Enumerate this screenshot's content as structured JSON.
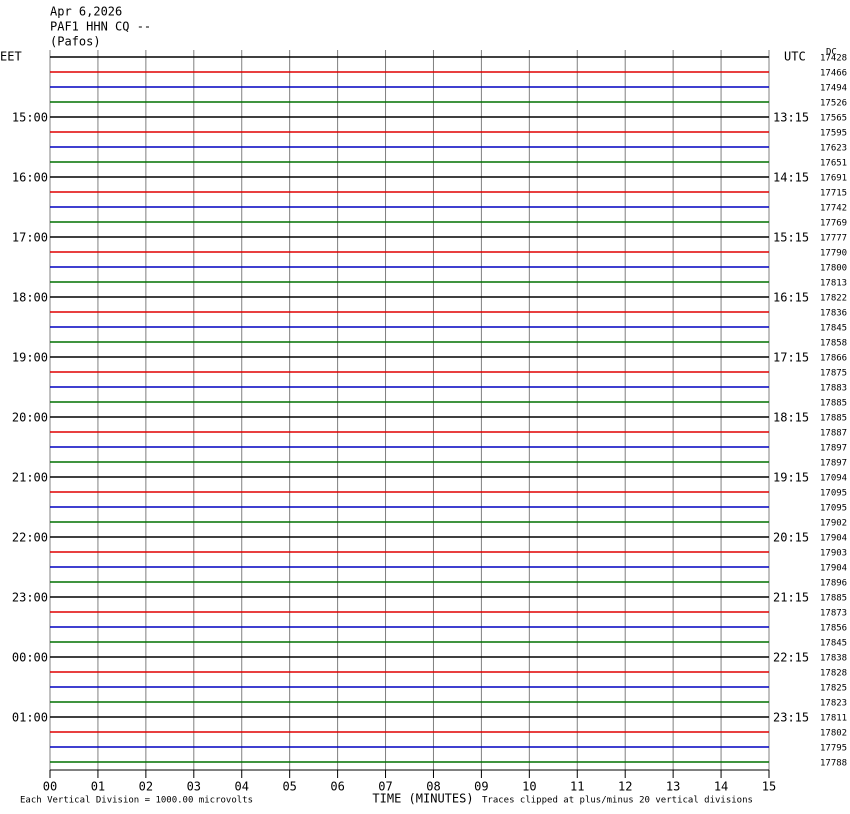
{
  "chart_data": {
    "type": "helicorder",
    "title": [
      "Apr 6,2026",
      "PAF1 HHN CQ --",
      "(Pafos)"
    ],
    "left_axis_label": "EET",
    "right_axis_label": "UTC",
    "dc_label": "DC",
    "xlabel": "TIME (MINUTES)",
    "footer_left": "Each Vertical Division = 1000.00 microvolts",
    "footer_right": "Traces clipped at plus/minus 20 vertical divisions",
    "left_labels": [
      null,
      null,
      null,
      null,
      "15:00",
      null,
      null,
      null,
      "16:00",
      null,
      null,
      null,
      "17:00",
      null,
      null,
      null,
      "18:00",
      null,
      null,
      null,
      "19:00",
      null,
      null,
      null,
      "20:00",
      null,
      null,
      null,
      "21:00",
      null,
      null,
      null,
      "22:00",
      null,
      null,
      null,
      "23:00",
      null,
      null,
      null,
      "00:00",
      null,
      null,
      null,
      "01:00",
      null,
      null,
      null
    ],
    "right_labels": [
      null,
      null,
      null,
      null,
      "13:15",
      null,
      null,
      null,
      "14:15",
      null,
      null,
      null,
      "15:15",
      null,
      null,
      null,
      "16:15",
      null,
      null,
      null,
      "17:15",
      null,
      null,
      null,
      "18:15",
      null,
      null,
      null,
      "19:15",
      null,
      null,
      null,
      "20:15",
      null,
      null,
      null,
      "21:15",
      null,
      null,
      null,
      "22:15",
      null,
      null,
      null,
      "23:15",
      null,
      null,
      null
    ],
    "dc_offsets": [
      17428,
      17466,
      17494,
      17526,
      17565,
      17595,
      17623,
      17651,
      17691,
      17715,
      17742,
      17769,
      17777,
      17790,
      17800,
      17813,
      17822,
      17836,
      17845,
      17858,
      17866,
      17875,
      17883,
      17885,
      17885,
      17887,
      17897,
      17897,
      17094,
      17095,
      17095,
      17902,
      17904,
      17903,
      17904,
      17896,
      17885,
      17873,
      17856,
      17845,
      17838,
      17828,
      17825,
      17823,
      17811,
      17802,
      17795,
      17788
    ],
    "trace_colors": [
      "#000000",
      "#e00000",
      "#0000c0",
      "#007000"
    ],
    "xlim": [
      0,
      15
    ],
    "xticks": [
      {
        "value": 0,
        "label": "00"
      },
      {
        "value": 1,
        "label": "01"
      },
      {
        "value": 2,
        "label": "02"
      },
      {
        "value": 3,
        "label": "03"
      },
      {
        "value": 4,
        "label": "04"
      },
      {
        "value": 5,
        "label": "05"
      },
      {
        "value": 6,
        "label": "06"
      },
      {
        "value": 7,
        "label": "07"
      },
      {
        "value": 8,
        "label": "08"
      },
      {
        "value": 9,
        "label": "09"
      },
      10,
      11,
      12,
      13,
      14,
      15
    ],
    "grid": true
  }
}
